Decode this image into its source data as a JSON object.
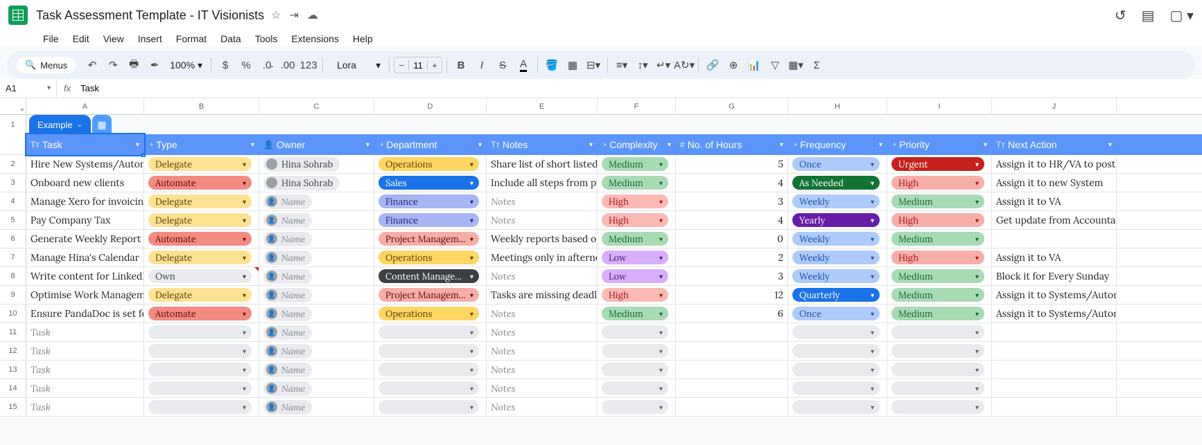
{
  "doc": {
    "title": "Task Assessment Template - IT Visionists"
  },
  "menus": [
    "File",
    "Edit",
    "View",
    "Insert",
    "Format",
    "Data",
    "Tools",
    "Extensions",
    "Help"
  ],
  "toolbar": {
    "search": "Menus",
    "zoom": "100%",
    "font": "Lora",
    "fontSize": "11"
  },
  "namebox": {
    "ref": "A1",
    "formula": "Task"
  },
  "colLetters": [
    "A",
    "B",
    "C",
    "D",
    "E",
    "F",
    "G",
    "H",
    "I",
    "J"
  ],
  "tab": {
    "label": "Example"
  },
  "columns": [
    {
      "key": "task",
      "label": "Task",
      "icon": "Tᴛ"
    },
    {
      "key": "type",
      "label": "Type",
      "icon": "◔"
    },
    {
      "key": "owner",
      "label": "Owner",
      "icon": "👤"
    },
    {
      "key": "dept",
      "label": "Department",
      "icon": "◔"
    },
    {
      "key": "notes",
      "label": "Notes",
      "icon": "Tᴛ"
    },
    {
      "key": "complex",
      "label": "Complexity",
      "icon": "◔"
    },
    {
      "key": "hours",
      "label": "No. of Hours",
      "icon": "#"
    },
    {
      "key": "freq",
      "label": "Frequency",
      "icon": "◔"
    },
    {
      "key": "prio",
      "label": "Priority",
      "icon": "◔"
    },
    {
      "key": "next",
      "label": "Next Action",
      "icon": "Tᴛ"
    }
  ],
  "placeholders": {
    "task": "Task",
    "owner": "Name",
    "notes": "Notes"
  },
  "chipColors": {
    "type": {
      "Delegate": {
        "bg": "#fde293",
        "fg": "#5f3b00"
      },
      "Automate": {
        "bg": "#f28b82",
        "fg": "#6a0000"
      },
      "Own": {
        "bg": "#e8eaed",
        "fg": "#3c4043"
      }
    },
    "dept": {
      "Operations": {
        "bg": "#fdd663",
        "fg": "#5f3b00"
      },
      "Sales": {
        "bg": "#1a73e8",
        "fg": "#ffffff"
      },
      "Finance": {
        "bg": "#a7b5f2",
        "fg": "#1a237e"
      },
      "Project Managem...": {
        "bg": "#f6aea9",
        "fg": "#6a0000"
      },
      "Content Manage...": {
        "bg": "#3c4043",
        "fg": "#ffffff"
      }
    },
    "complex": {
      "Low": {
        "bg": "#d7aefb",
        "fg": "#3d1e63"
      },
      "Medium": {
        "bg": "#a8dab5",
        "fg": "#0d652d"
      },
      "High": {
        "bg": "#fbb9b6",
        "fg": "#a50e0e"
      }
    },
    "freq": {
      "Once": {
        "bg": "#aecbfa",
        "fg": "#174ea6"
      },
      "As Needed": {
        "bg": "#137333",
        "fg": "#ffffff"
      },
      "Weekly": {
        "bg": "#aecbfa",
        "fg": "#174ea6"
      },
      "Yearly": {
        "bg": "#681da8",
        "fg": "#ffffff"
      },
      "Quarterly": {
        "bg": "#1a73e8",
        "fg": "#ffffff"
      }
    },
    "prio": {
      "Urgent": {
        "bg": "#c5221f",
        "fg": "#ffffff"
      },
      "High": {
        "bg": "#f6aea9",
        "fg": "#a50e0e"
      },
      "Medium": {
        "bg": "#a8dab5",
        "fg": "#0d652d"
      }
    }
  },
  "rows": [
    {
      "task": "Hire New Systems/Autom",
      "type": "Delegate",
      "owner": "Hina Sohrab",
      "dept": "Operations",
      "notes": "Share list of short listed",
      "complex": "Medium",
      "hours": "5",
      "freq": "Once",
      "prio": "Urgent",
      "next": "Assign it to HR/VA to post"
    },
    {
      "task": "Onboard new clients",
      "type": "Automate",
      "owner": "Hina Sohrab",
      "dept": "Sales",
      "notes": "Include all steps from pr",
      "complex": "Medium",
      "hours": "4",
      "freq": "As Needed",
      "prio": "High",
      "next": "Assign it to new System"
    },
    {
      "task": "Manage Xero for invoicing",
      "type": "Delegate",
      "owner": "",
      "dept": "Finance",
      "notes": "",
      "complex": "High",
      "hours": "3",
      "freq": "Weekly",
      "prio": "Medium",
      "next": "Assign it to VA"
    },
    {
      "task": "Pay Company Tax",
      "type": "Delegate",
      "owner": "",
      "dept": "Finance",
      "notes": "",
      "complex": "High",
      "hours": "4",
      "freq": "Yearly",
      "prio": "High",
      "next": "Get update from Accountan"
    },
    {
      "task": "Generate Weekly Report f",
      "type": "Automate",
      "owner": "",
      "dept": "Project Managem...",
      "notes": "Weekly reports based on",
      "complex": "Medium",
      "hours": "0",
      "freq": "Weekly",
      "prio": "Medium",
      "next": ""
    },
    {
      "task": "Manage Hina's Calendar",
      "type": "Delegate",
      "owner": "",
      "dept": "Operations",
      "notes": "Meetings only in afterno",
      "complex": "Low",
      "hours": "2",
      "freq": "Weekly",
      "prio": "High",
      "next": "Assign it to VA"
    },
    {
      "task": "Write content for LinkedI",
      "type": "Own",
      "owner": "",
      "dept": "Content Manage...",
      "notes": "",
      "complex": "Low",
      "hours": "3",
      "freq": "Weekly",
      "prio": "Medium",
      "next": "Block it for Every Sunday",
      "noteflag": true
    },
    {
      "task": "Optimise Work Manageme",
      "type": "Delegate",
      "owner": "",
      "dept": "Project Managem...",
      "notes": "Tasks are missing deadli",
      "complex": "High",
      "hours": "12",
      "freq": "Quarterly",
      "prio": "Medium",
      "next": "Assign it to Systems/Auton"
    },
    {
      "task": "Ensure PandaDoc is set fo",
      "type": "Automate",
      "owner": "",
      "dept": "Operations",
      "notes": "",
      "complex": "Medium",
      "hours": "6",
      "freq": "Once",
      "prio": "Medium",
      "next": "Assign it to Systems/Auton"
    },
    {
      "task": "",
      "type": "",
      "owner": "",
      "dept": "",
      "notes": "",
      "complex": "",
      "hours": "",
      "freq": "",
      "prio": "",
      "next": ""
    },
    {
      "task": "",
      "type": "",
      "owner": "",
      "dept": "",
      "notes": "",
      "complex": "",
      "hours": "",
      "freq": "",
      "prio": "",
      "next": ""
    },
    {
      "task": "",
      "type": "",
      "owner": "",
      "dept": "",
      "notes": "",
      "complex": "",
      "hours": "",
      "freq": "",
      "prio": "",
      "next": ""
    },
    {
      "task": "",
      "type": "",
      "owner": "",
      "dept": "",
      "notes": "",
      "complex": "",
      "hours": "",
      "freq": "",
      "prio": "",
      "next": ""
    },
    {
      "task": "",
      "type": "",
      "owner": "",
      "dept": "",
      "notes": "",
      "complex": "",
      "hours": "",
      "freq": "",
      "prio": "",
      "next": ""
    }
  ]
}
